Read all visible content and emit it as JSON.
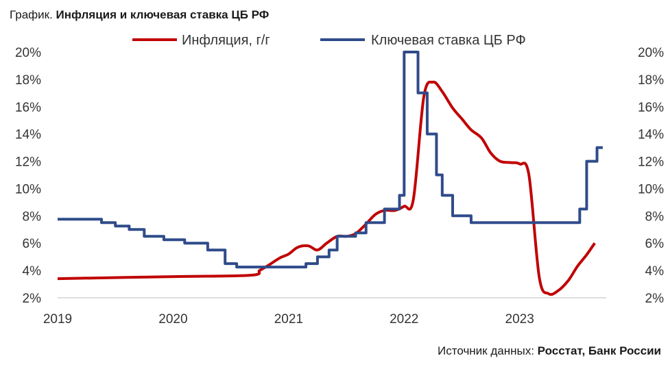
{
  "title": {
    "prefix": "График.",
    "main": "Инфляция и ключевая ставка ЦБ РФ"
  },
  "source": {
    "prefix": "Источник данных:",
    "value": "Росстат, Банк России"
  },
  "chart_data": {
    "type": "line",
    "title": "Инфляция и ключевая ставка ЦБ РФ",
    "xlabel": "",
    "ylabel": "",
    "xlim": [
      2019.0,
      2023.75
    ],
    "ylim": [
      2,
      20
    ],
    "x_ticks": [
      "2019",
      "2020",
      "2021",
      "2022",
      "2023"
    ],
    "y_ticks": [
      "2%",
      "4%",
      "6%",
      "8%",
      "10%",
      "12%",
      "14%",
      "16%",
      "18%",
      "20%"
    ],
    "secondary_y_ticks": [
      "2%",
      "4%",
      "6%",
      "8%",
      "10%",
      "12%",
      "14%",
      "16%",
      "18%",
      "20%"
    ],
    "grid": false,
    "legend_position": "top",
    "series": [
      {
        "name": "Инфляция, г/г",
        "color": "#c00000",
        "step": false,
        "points": [
          [
            2019.0,
            3.4
          ],
          [
            2020.0,
            3.55
          ],
          [
            2020.67,
            3.65
          ],
          [
            2020.75,
            4.0
          ],
          [
            2020.83,
            4.4
          ],
          [
            2020.92,
            4.9
          ],
          [
            2021.0,
            5.2
          ],
          [
            2021.08,
            5.7
          ],
          [
            2021.17,
            5.8
          ],
          [
            2021.25,
            5.5
          ],
          [
            2021.33,
            6.0
          ],
          [
            2021.42,
            6.5
          ],
          [
            2021.5,
            6.5
          ],
          [
            2021.58,
            6.7
          ],
          [
            2021.67,
            7.4
          ],
          [
            2021.75,
            8.1
          ],
          [
            2021.83,
            8.4
          ],
          [
            2021.92,
            8.4
          ],
          [
            2022.0,
            8.7
          ],
          [
            2022.08,
            9.2
          ],
          [
            2022.17,
            16.7
          ],
          [
            2022.25,
            17.8
          ],
          [
            2022.33,
            17.1
          ],
          [
            2022.42,
            15.9
          ],
          [
            2022.5,
            15.1
          ],
          [
            2022.58,
            14.3
          ],
          [
            2022.67,
            13.7
          ],
          [
            2022.75,
            12.6
          ],
          [
            2022.83,
            12.0
          ],
          [
            2022.92,
            11.9
          ],
          [
            2023.0,
            11.8
          ],
          [
            2023.08,
            11.0
          ],
          [
            2023.17,
            3.5
          ],
          [
            2023.25,
            2.3
          ],
          [
            2023.33,
            2.5
          ],
          [
            2023.42,
            3.25
          ],
          [
            2023.5,
            4.3
          ],
          [
            2023.58,
            5.15
          ],
          [
            2023.65,
            6.0
          ]
        ]
      },
      {
        "name": "Ключевая ставка ЦБ РФ",
        "color": "#2f4b8a",
        "step": true,
        "points": [
          [
            2019.0,
            7.75
          ],
          [
            2019.38,
            7.5
          ],
          [
            2019.5,
            7.25
          ],
          [
            2019.62,
            7.0
          ],
          [
            2019.75,
            6.5
          ],
          [
            2019.92,
            6.25
          ],
          [
            2020.1,
            6.0
          ],
          [
            2020.3,
            5.5
          ],
          [
            2020.45,
            4.5
          ],
          [
            2020.55,
            4.25
          ],
          [
            2021.15,
            4.5
          ],
          [
            2021.25,
            5.0
          ],
          [
            2021.35,
            5.5
          ],
          [
            2021.42,
            6.5
          ],
          [
            2021.58,
            6.75
          ],
          [
            2021.67,
            7.5
          ],
          [
            2021.83,
            8.5
          ],
          [
            2021.96,
            9.5
          ],
          [
            2022.0,
            20.0
          ],
          [
            2022.12,
            17.0
          ],
          [
            2022.2,
            14.0
          ],
          [
            2022.28,
            11.0
          ],
          [
            2022.33,
            9.5
          ],
          [
            2022.42,
            8.0
          ],
          [
            2022.58,
            7.5
          ],
          [
            2023.52,
            8.5
          ],
          [
            2023.58,
            12.0
          ],
          [
            2023.67,
            13.0
          ],
          [
            2023.72,
            13.0
          ]
        ]
      }
    ]
  }
}
